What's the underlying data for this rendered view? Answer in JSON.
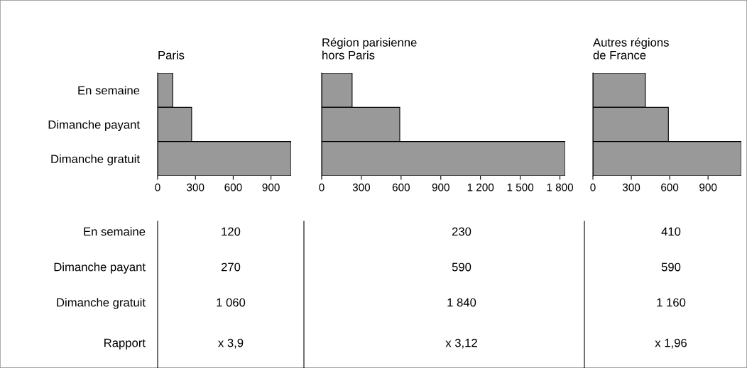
{
  "chart_data": [
    {
      "type": "bar",
      "orientation": "horizontal",
      "title": "Paris",
      "categories": [
        "En semaine",
        "Dimanche payant",
        "Dimanche gratuit"
      ],
      "values": [
        120,
        270,
        1060
      ],
      "color": "#999999",
      "xlim": [
        0,
        1060
      ],
      "xticks": [
        0,
        300,
        600,
        900
      ]
    },
    {
      "type": "bar",
      "orientation": "horizontal",
      "title": "Région parisienne\nhors Paris",
      "categories": [
        null,
        null,
        null
      ],
      "values": [
        230,
        590,
        1840
      ],
      "color": "#999999",
      "xlim": [
        0,
        1840
      ],
      "xticks": [
        0,
        300,
        600,
        900,
        {
          "value": 1200,
          "label": "1 200"
        },
        {
          "value": 1500,
          "label": "1 500"
        },
        {
          "value": 1800,
          "label": "1 800"
        }
      ],
      "tick_labels": "x"
    },
    {
      "type": "bar",
      "orientation": "horizontal",
      "title": "Autres régions\nde France",
      "categories": [
        null,
        null,
        null
      ],
      "values": [
        410,
        590,
        1160
      ],
      "color": "#999999",
      "xlim": [
        0,
        1160
      ],
      "xticks": [
        0,
        300,
        600,
        900
      ],
      "tick_labels": "x"
    },
    {
      "type": "other",
      "annotations": [
        "En semaine",
        "120",
        "230",
        "410",
        "Dimanche payant",
        "270",
        "590",
        "590",
        "Dimanche gratuit",
        "1 060",
        "1 840",
        "1 160",
        "Rapport",
        "x 3,9",
        "x 3,12",
        "x 1,96"
      ]
    }
  ]
}
